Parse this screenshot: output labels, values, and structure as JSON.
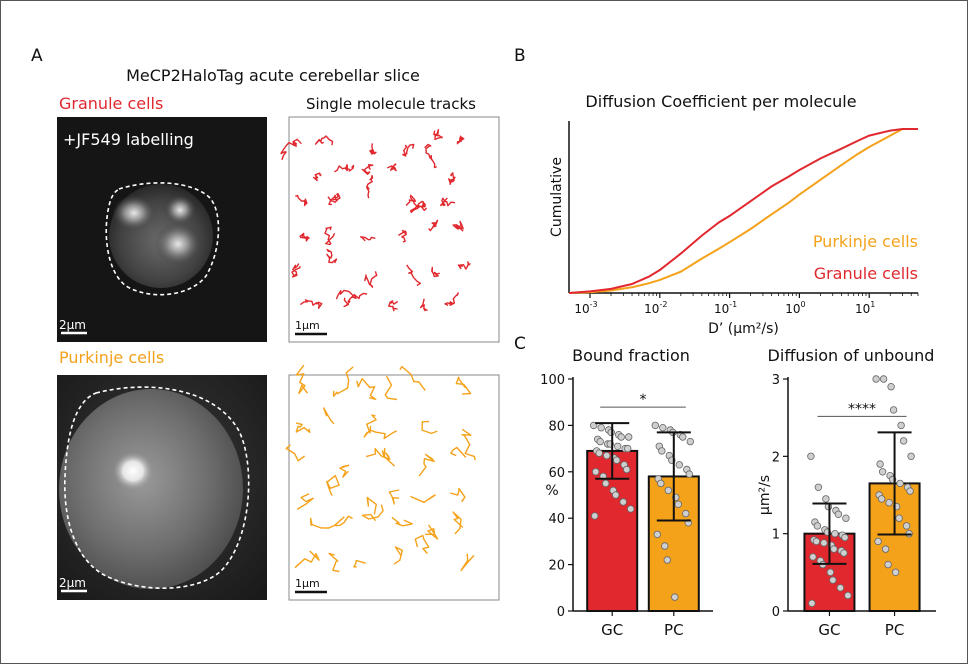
{
  "panels": {
    "a": {
      "letter": "A",
      "title": "MeCP2HaloTag acute cerebellar slice",
      "granule_label": "Granule cells",
      "tracks_label": "Single molecule tracks",
      "labelling": "+JF549 labelling",
      "purkinje_label": "Purkinje cells",
      "scale_image": "2μm",
      "scale_tracks": "1μm"
    },
    "b": {
      "letter": "B"
    },
    "c": {
      "letter": "C"
    }
  },
  "colors": {
    "granule": "#e0282e",
    "purkinje": "#f5a21b",
    "bar_outline": "#111111",
    "point_fill": "#cfcfcf"
  },
  "chart_data": [
    {
      "type": "line",
      "title": "Diffusion Coefficient per molecule",
      "xlabel": "D’ (μm²/s)",
      "ylabel": "Cumulative",
      "xscale": "log",
      "xlim": [
        0.0005,
        50
      ],
      "ylim": [
        0,
        1
      ],
      "xticks": [
        0.001,
        0.01,
        0.1,
        1,
        10
      ],
      "xtick_labels": [
        {
          "base": "10",
          "exp": "-3"
        },
        {
          "base": "10",
          "exp": "-2"
        },
        {
          "base": "10",
          "exp": "-1"
        },
        {
          "base": "10",
          "exp": "0"
        },
        {
          "base": "10",
          "exp": "1"
        }
      ],
      "legend": [
        "Purkinje cells",
        "Granule cells"
      ],
      "legend_position": "bottom-right",
      "series": [
        {
          "name": "Purkinje cells",
          "color": "#f5a21b",
          "x": [
            0.0005,
            0.001,
            0.002,
            0.004,
            0.007,
            0.01,
            0.02,
            0.04,
            0.07,
            0.1,
            0.2,
            0.4,
            0.7,
            1,
            2,
            4,
            7,
            10,
            20,
            30,
            50
          ],
          "y": [
            0.0,
            0.005,
            0.015,
            0.035,
            0.06,
            0.08,
            0.13,
            0.21,
            0.27,
            0.31,
            0.39,
            0.48,
            0.55,
            0.6,
            0.69,
            0.78,
            0.85,
            0.89,
            0.96,
            1.0,
            1.0
          ]
        },
        {
          "name": "Granule cells",
          "color": "#e0282e",
          "x": [
            0.0005,
            0.001,
            0.002,
            0.004,
            0.007,
            0.01,
            0.02,
            0.04,
            0.07,
            0.1,
            0.2,
            0.4,
            0.7,
            1,
            2,
            4,
            7,
            10,
            20,
            30,
            50
          ],
          "y": [
            0.0,
            0.01,
            0.025,
            0.055,
            0.1,
            0.14,
            0.24,
            0.35,
            0.43,
            0.47,
            0.56,
            0.65,
            0.71,
            0.75,
            0.82,
            0.88,
            0.93,
            0.96,
            0.99,
            1.0,
            1.0
          ]
        }
      ]
    },
    {
      "type": "bar",
      "title": "Bound fraction",
      "ylabel": "%",
      "ylim": [
        0,
        100
      ],
      "yticks": [
        0,
        20,
        40,
        60,
        80,
        100
      ],
      "categories": [
        "GC",
        "PC"
      ],
      "values": [
        69,
        58
      ],
      "errors": [
        12,
        19
      ],
      "significance": "*",
      "points": [
        [
          80,
          79,
          78,
          77,
          76,
          75,
          75,
          74,
          73,
          72,
          72,
          71,
          70,
          70,
          69,
          68,
          67,
          66,
          65,
          63,
          61,
          60,
          58,
          55,
          52,
          50,
          47,
          44,
          41
        ],
        [
          80,
          79,
          78,
          77,
          76,
          75,
          73,
          71,
          69,
          67,
          65,
          63,
          61,
          59,
          57,
          55,
          52,
          49,
          46,
          42,
          38,
          33,
          28,
          22,
          6
        ]
      ]
    },
    {
      "type": "bar",
      "title": "Diffusion of unbound",
      "ylabel": "μm²/s",
      "ylim": [
        0,
        3
      ],
      "yticks": [
        0,
        1,
        2,
        3
      ],
      "categories": [
        "GC",
        "PC"
      ],
      "values": [
        1.0,
        1.65
      ],
      "errors": [
        0.39,
        0.66
      ],
      "significance": "****",
      "points": [
        [
          2.0,
          1.6,
          1.45,
          1.35,
          1.3,
          1.25,
          1.2,
          1.15,
          1.1,
          1.05,
          1.02,
          1.0,
          0.98,
          0.95,
          0.92,
          0.9,
          0.88,
          0.85,
          0.8,
          0.78,
          0.75,
          0.7,
          0.65,
          0.6,
          0.5,
          0.4,
          0.3,
          0.2,
          0.1
        ],
        [
          3.0,
          3.0,
          2.9,
          2.6,
          2.4,
          2.2,
          2.0,
          1.9,
          1.8,
          1.75,
          1.7,
          1.65,
          1.6,
          1.55,
          1.5,
          1.45,
          1.4,
          1.35,
          1.2,
          1.1,
          1.0,
          0.9,
          0.8,
          0.6,
          0.5
        ]
      ]
    }
  ]
}
